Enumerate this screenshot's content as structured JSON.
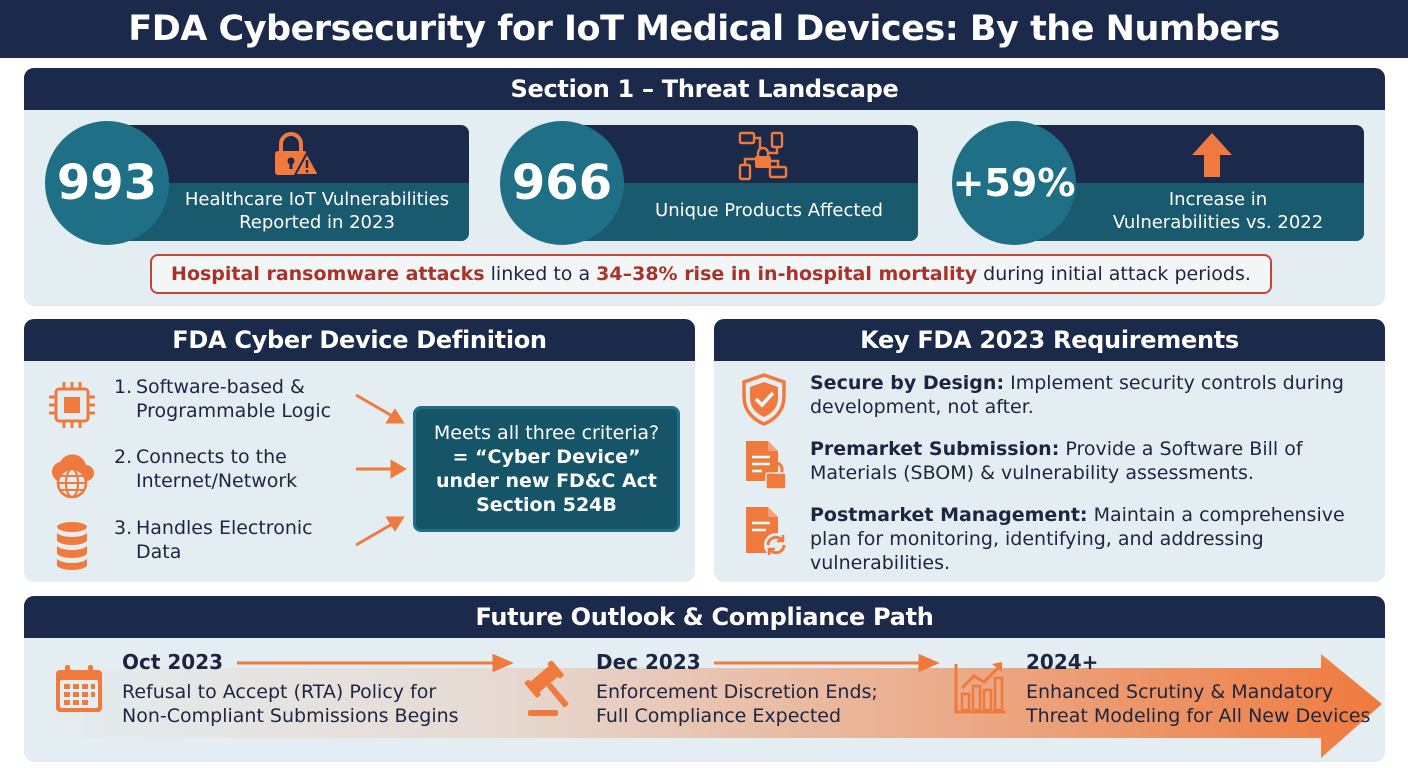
{
  "title": "FDA Cybersecurity for IoT Medical Devices: By the Numbers",
  "section1": {
    "heading": "Section 1 – Threat Landscape",
    "stats": [
      {
        "value": "993",
        "label_line1": "Healthcare IoT Vulnerabilities",
        "label_line2": "Reported in 2023",
        "icon": "lock-warning-icon"
      },
      {
        "value": "966",
        "label_line1": "Unique Products Affected",
        "label_line2": "",
        "icon": "connected-devices-icon"
      },
      {
        "value": "+59%",
        "label_line1": "Increase in",
        "label_line2": "Vulnerabilities vs. 2022",
        "icon": "up-arrow-icon"
      }
    ],
    "callout": {
      "part1": "Hospital ransomware attacks",
      "part2": " linked to a ",
      "part3": "34–38% rise in in-hospital mortality",
      "part4": " during initial attack periods."
    }
  },
  "definition": {
    "heading": "FDA Cyber Device Definition",
    "criteria": [
      {
        "num": "1.",
        "line1": "Software-based &",
        "line2": "Programmable Logic",
        "icon": "chip-icon"
      },
      {
        "num": "2.",
        "line1": "Connects to the",
        "line2": "Internet/Network",
        "icon": "cloud-globe-icon"
      },
      {
        "num": "3.",
        "line1": "Handles Electronic",
        "line2": "Data",
        "icon": "database-icon"
      }
    ],
    "result": {
      "line1": "Meets all three criteria?",
      "line2": "= “Cyber Device”",
      "line3": "under new FD&C Act",
      "line4": "Section 524B"
    }
  },
  "requirements": {
    "heading": "Key FDA 2023 Requirements",
    "items": [
      {
        "key": "Secure by Design:",
        "text": " Implement security controls during development, not after.",
        "icon": "shield-check-icon"
      },
      {
        "key": "Premarket Submission:",
        "text": " Provide a Software Bill of Materials (SBOM) & vulnerability assessments.",
        "icon": "document-lock-icon"
      },
      {
        "key": "Postmarket Management:",
        "text": " Maintain a comprehensive plan for monitoring, identifying, and addressing vulnerabilities.",
        "icon": "document-refresh-icon"
      }
    ]
  },
  "future": {
    "heading": "Future Outlook & Compliance Path",
    "steps": [
      {
        "date": "Oct 2023",
        "line1": "Refusal to Accept (RTA) Policy for",
        "line2": "Non-Compliant Submissions Begins",
        "icon": "calendar-icon"
      },
      {
        "date": "Dec 2023",
        "line1": "Enforcement Discretion Ends;",
        "line2": "Full Compliance Expected",
        "icon": "gavel-icon"
      },
      {
        "date": "2024+",
        "line1": "Enhanced Scrutiny & Mandatory",
        "line2": "Threat Modeling for All New Devices",
        "icon": "growth-chart-icon"
      }
    ]
  },
  "colors": {
    "navy": "#1b2a4a",
    "teal": "#1f7086",
    "orange": "#f07a3e",
    "red": "#a8332b",
    "panel_bg": "#e4eef2"
  }
}
